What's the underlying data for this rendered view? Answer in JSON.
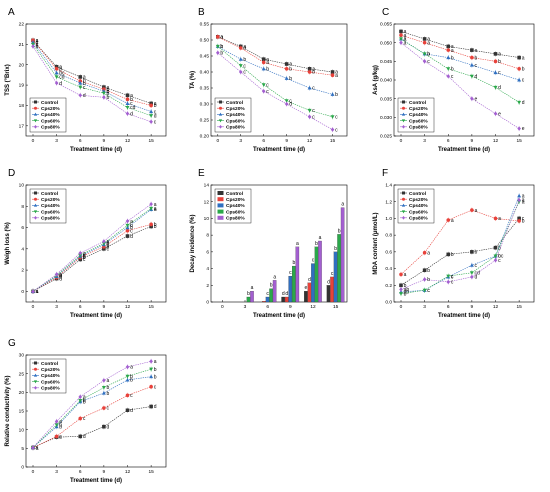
{
  "colors": {
    "Control": "#333333",
    "Cps20%": "#e8413a",
    "Cps40%": "#2f6fc0",
    "Cps60%": "#2aa84a",
    "Cps80%": "#a35fd0"
  },
  "chart_data": [
    {
      "id": "A",
      "type": "line",
      "panel_label": "A",
      "xlabel": "Treatment time (d)",
      "ylabel": "TSS (°Brix)",
      "x": [
        0,
        3,
        6,
        9,
        12,
        15
      ],
      "xlim": [
        0,
        16
      ],
      "ylim": [
        16.5,
        22
      ],
      "yticks": [
        17,
        18,
        19,
        20,
        21,
        22
      ],
      "legend_position": "bottom-left",
      "series": [
        {
          "name": "Control",
          "marker": "square",
          "values": [
            21.2,
            19.9,
            19.4,
            18.9,
            18.5,
            18.1
          ],
          "labels": [
            "a",
            "a",
            "a",
            "a",
            "a",
            "a"
          ]
        },
        {
          "name": "Cps20%",
          "marker": "circle",
          "values": [
            21.2,
            19.8,
            19.2,
            18.8,
            18.3,
            18.0
          ],
          "labels": [
            "a",
            "b",
            "b",
            "b",
            "b",
            "b"
          ]
        },
        {
          "name": "Cps40%",
          "marker": "triangle-up",
          "values": [
            21.1,
            19.6,
            19.1,
            18.7,
            18.1,
            17.7
          ],
          "labels": [
            "a",
            "bc",
            "b",
            "b",
            "c",
            "c"
          ]
        },
        {
          "name": "Cps60%",
          "marker": "triangle-down",
          "values": [
            21.0,
            19.4,
            18.9,
            18.6,
            17.9,
            17.5
          ],
          "labels": [
            "a",
            "cd",
            "c",
            "b",
            "cd",
            "d"
          ]
        },
        {
          "name": "Cps80%",
          "marker": "diamond",
          "values": [
            20.9,
            19.1,
            18.5,
            18.4,
            17.6,
            17.2
          ],
          "labels": [
            "a",
            "d",
            "d",
            "b",
            "d",
            "c"
          ]
        }
      ]
    },
    {
      "id": "B",
      "type": "line",
      "panel_label": "B",
      "xlabel": "Treatment time (d)",
      "ylabel": "TA (%)",
      "x": [
        0,
        3,
        6,
        9,
        12,
        15
      ],
      "xlim": [
        0,
        16
      ],
      "ylim": [
        0.2,
        0.55
      ],
      "yticks": [
        0.2,
        0.25,
        0.3,
        0.35,
        0.4,
        0.45,
        0.5,
        0.55
      ],
      "legend_position": "bottom-left",
      "series": [
        {
          "name": "Control",
          "marker": "square",
          "values": [
            0.51,
            0.48,
            0.44,
            0.425,
            0.41,
            0.4
          ],
          "labels": [
            "a",
            "a",
            "a",
            "a",
            "a",
            "a"
          ]
        },
        {
          "name": "Cps20%",
          "marker": "circle",
          "values": [
            0.51,
            0.475,
            0.43,
            0.41,
            0.4,
            0.39
          ],
          "labels": [
            "a",
            "a",
            "a",
            "b",
            "b",
            "a"
          ]
        },
        {
          "name": "Cps40%",
          "marker": "triangle-up",
          "values": [
            0.48,
            0.44,
            0.41,
            0.38,
            0.35,
            0.33
          ],
          "labels": [
            "b",
            "b",
            "b",
            "b",
            "c",
            "b"
          ]
        },
        {
          "name": "Cps60%",
          "marker": "triangle-down",
          "values": [
            0.48,
            0.42,
            0.36,
            0.31,
            0.28,
            0.26
          ],
          "labels": [
            "b",
            "c",
            "c",
            "c",
            "c",
            "c"
          ]
        },
        {
          "name": "Cps80%",
          "marker": "diamond",
          "values": [
            0.46,
            0.4,
            0.34,
            0.3,
            0.26,
            0.22
          ],
          "labels": [
            "b",
            "c",
            "c",
            "d",
            "c",
            "c"
          ]
        }
      ]
    },
    {
      "id": "C",
      "type": "line",
      "panel_label": "C",
      "xlabel": "Treatment time (d)",
      "ylabel": "AsA (g/kg)",
      "x": [
        0,
        3,
        6,
        9,
        12,
        15
      ],
      "xlim": [
        0,
        16
      ],
      "ylim": [
        0.025,
        0.055
      ],
      "yticks": [
        0.025,
        0.03,
        0.035,
        0.04,
        0.045,
        0.05,
        0.055
      ],
      "legend_position": "bottom-left",
      "series": [
        {
          "name": "Control",
          "marker": "square",
          "values": [
            0.053,
            0.051,
            0.049,
            0.048,
            0.047,
            0.046
          ],
          "labels": [
            "a",
            "a",
            "a",
            "a",
            "a",
            "a"
          ]
        },
        {
          "name": "Cps20%",
          "marker": "circle",
          "values": [
            0.052,
            0.05,
            0.048,
            0.046,
            0.045,
            0.043
          ],
          "labels": [
            "a",
            "a",
            "a",
            "b",
            "b",
            "b"
          ]
        },
        {
          "name": "Cps40%",
          "marker": "triangle-up",
          "values": [
            0.051,
            0.047,
            0.046,
            0.044,
            0.042,
            0.04
          ],
          "labels": [
            "a",
            "b",
            "b",
            "c",
            "c",
            "c"
          ]
        },
        {
          "name": "Cps60%",
          "marker": "triangle-down",
          "values": [
            0.051,
            0.047,
            0.043,
            0.041,
            0.038,
            0.034
          ],
          "labels": [
            "a",
            "b",
            "b",
            "d",
            "d",
            "d"
          ]
        },
        {
          "name": "Cps80%",
          "marker": "diamond",
          "values": [
            0.05,
            0.045,
            0.041,
            0.035,
            0.031,
            0.027
          ],
          "labels": [
            "a",
            "c",
            "c",
            "e",
            "e",
            "e"
          ]
        }
      ]
    },
    {
      "id": "D",
      "type": "line",
      "panel_label": "D",
      "xlabel": "Treatment time (d)",
      "ylabel": "Weigh loss (%)",
      "x": [
        0,
        3,
        6,
        9,
        12,
        15
      ],
      "xlim": [
        0,
        16
      ],
      "ylim": [
        -1,
        10
      ],
      "yticks": [
        0,
        2,
        4,
        6,
        8,
        10
      ],
      "legend_position": "top-left",
      "series": [
        {
          "name": "Control",
          "marker": "square",
          "values": [
            0,
            1.2,
            3.0,
            4.0,
            5.2,
            6.1
          ],
          "labels": [
            "a",
            "d",
            "c",
            "c",
            "d",
            "b"
          ]
        },
        {
          "name": "Cps20%",
          "marker": "circle",
          "values": [
            0,
            1.3,
            3.2,
            4.2,
            5.7,
            6.3
          ],
          "labels": [
            "a",
            "c",
            "b",
            "b",
            "c",
            "b"
          ]
        },
        {
          "name": "Cps40%",
          "marker": "triangle-up",
          "values": [
            0,
            1.4,
            3.3,
            4.4,
            6.0,
            7.7
          ],
          "labels": [
            "a",
            "b",
            "b",
            "b",
            "b",
            "a"
          ]
        },
        {
          "name": "Cps60%",
          "marker": "triangle-down",
          "values": [
            0,
            1.5,
            3.4,
            4.5,
            6.2,
            7.8
          ],
          "labels": [
            "a",
            "b",
            "a",
            "b",
            "b",
            "a"
          ]
        },
        {
          "name": "Cps80%",
          "marker": "diamond",
          "values": [
            0,
            1.6,
            3.6,
            4.7,
            6.6,
            8.2
          ],
          "labels": [
            "a",
            "a",
            "a",
            "a",
            "a",
            "a"
          ]
        }
      ]
    },
    {
      "id": "E",
      "type": "bar",
      "panel_label": "E",
      "xlabel": "Treatment time (d)",
      "ylabel": "Decay incidence (%)",
      "categories": [
        "0",
        "3",
        "6",
        "9",
        "12",
        "15"
      ],
      "ylim": [
        0,
        14
      ],
      "yticks": [
        0,
        2,
        4,
        6,
        8,
        10,
        12,
        14
      ],
      "legend_position": "top-left",
      "series": [
        {
          "name": "Control",
          "values": [
            0,
            0,
            0,
            0.6,
            1.3,
            2.0
          ],
          "labels": [
            "",
            "",
            "",
            "d",
            "e",
            "d"
          ]
        },
        {
          "name": "Cps20%",
          "values": [
            0,
            0,
            0.1,
            0.6,
            2.3,
            3.0
          ],
          "labels": [
            "",
            "",
            "",
            "d",
            "d",
            "c"
          ]
        },
        {
          "name": "Cps40%",
          "values": [
            0,
            0,
            0.6,
            3.1,
            4.6,
            6.0
          ],
          "labels": [
            "",
            "",
            "c",
            "c",
            "c",
            "b"
          ]
        },
        {
          "name": "Cps60%",
          "values": [
            0,
            0.6,
            1.6,
            4.3,
            6.6,
            8.1
          ],
          "labels": [
            "",
            "b",
            "b",
            "b",
            "b",
            "b"
          ]
        },
        {
          "name": "Cps80%",
          "values": [
            0,
            1.3,
            2.6,
            6.6,
            7.3,
            11.3
          ],
          "labels": [
            "",
            "a",
            "a",
            "a",
            "a",
            "a"
          ]
        }
      ]
    },
    {
      "id": "F",
      "type": "line",
      "panel_label": "F",
      "xlabel": "Treatment time (d)",
      "ylabel": "MDA content (μmol/L)",
      "x": [
        0,
        3,
        6,
        9,
        12,
        15
      ],
      "xlim": [
        0,
        16
      ],
      "ylim": [
        0,
        1.4
      ],
      "yticks": [
        0.0,
        0.2,
        0.4,
        0.6,
        0.8,
        1.0,
        1.2,
        1.4
      ],
      "legend_position": "top-left",
      "series": [
        {
          "name": "Control",
          "marker": "square",
          "values": [
            0.2,
            0.38,
            0.57,
            0.6,
            0.65,
            1.0
          ],
          "labels": [
            "b",
            "b",
            "b",
            "b",
            "b",
            "c"
          ]
        },
        {
          "name": "Cps20%",
          "marker": "circle",
          "values": [
            0.33,
            0.59,
            0.98,
            1.1,
            1.0,
            0.97
          ],
          "labels": [
            "a",
            "a",
            "a",
            "a",
            "a",
            "b"
          ]
        },
        {
          "name": "Cps40%",
          "marker": "triangle-up",
          "values": [
            0.12,
            0.14,
            0.3,
            0.44,
            0.55,
            1.27
          ],
          "labels": [
            "ab",
            "c",
            "c",
            "c",
            "bc",
            "a"
          ]
        },
        {
          "name": "Cps60%",
          "marker": "triangle-down",
          "values": [
            0.1,
            0.14,
            0.31,
            0.35,
            0.55,
            1.2
          ],
          "labels": [
            "b",
            "c",
            "c",
            "cd",
            "c",
            "a"
          ]
        },
        {
          "name": "Cps80%",
          "marker": "diamond",
          "values": [
            0.15,
            0.27,
            0.24,
            0.3,
            0.5,
            1.22
          ],
          "labels": [
            "ab",
            "b",
            "c",
            "d",
            "c",
            "a"
          ]
        }
      ]
    },
    {
      "id": "G",
      "type": "line",
      "panel_label": "G",
      "xlabel": "Treatment time (d)",
      "ylabel": "Relative conductivity (%)",
      "x": [
        0,
        3,
        6,
        9,
        12,
        15
      ],
      "xlim": [
        0,
        16
      ],
      "ylim": [
        0,
        30
      ],
      "yticks": [
        0,
        5,
        10,
        15,
        20,
        25,
        30
      ],
      "legend_position": "top-left",
      "series": [
        {
          "name": "Control",
          "marker": "square",
          "values": [
            5.2,
            8.0,
            8.2,
            10.8,
            15.2,
            16.2
          ],
          "labels": [
            "a",
            "c",
            "d",
            "d",
            "d",
            "d"
          ]
        },
        {
          "name": "Cps20%",
          "marker": "circle",
          "values": [
            5.2,
            8.2,
            13.0,
            15.8,
            19.2,
            21.5
          ],
          "labels": [
            "a",
            "c",
            "c",
            "c",
            "c",
            "c"
          ]
        },
        {
          "name": "Cps40%",
          "marker": "triangle-up",
          "values": [
            5.2,
            10.8,
            17.5,
            19.8,
            23.3,
            24.2
          ],
          "labels": [
            "a",
            "b",
            "b",
            "b",
            "b",
            "b"
          ]
        },
        {
          "name": "Cps60%",
          "marker": "triangle-down",
          "values": [
            5.2,
            11.3,
            17.8,
            21.3,
            24.3,
            26.2
          ],
          "labels": [
            "a",
            "b",
            "b",
            "b",
            "b",
            "b"
          ]
        },
        {
          "name": "Cps80%",
          "marker": "diamond",
          "values": [
            5.2,
            12.2,
            18.8,
            23.2,
            26.8,
            28.3
          ],
          "labels": [
            "a",
            "a",
            "a",
            "a",
            "a",
            "a"
          ]
        }
      ]
    }
  ]
}
